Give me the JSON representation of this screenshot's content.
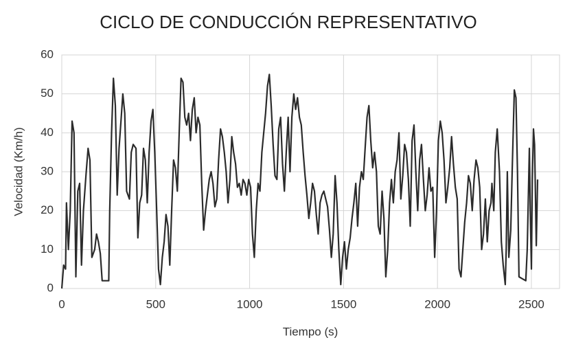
{
  "chart_data": {
    "type": "line",
    "title": "CICLO DE CONDUCCIÓN REPRESENTATIVO",
    "x_label": "Tiempo (s)",
    "y_label": "Velocidad (Km/h)",
    "xlim": [
      0,
      2650
    ],
    "ylim": [
      0,
      60
    ],
    "xticks": [
      0,
      500,
      1000,
      1500,
      2000,
      2500
    ],
    "yticks": [
      0,
      10,
      20,
      30,
      40,
      50,
      60
    ],
    "grid": true,
    "color": "#2b2b2b",
    "series": [
      {
        "name": "Velocidad",
        "color": "#2b2b2b",
        "x": [
          0,
          10,
          20,
          25,
          35,
          45,
          55,
          65,
          75,
          85,
          95,
          105,
          115,
          130,
          140,
          150,
          160,
          175,
          185,
          195,
          205,
          215,
          250,
          255,
          265,
          275,
          285,
          295,
          305,
          315,
          325,
          335,
          345,
          360,
          370,
          380,
          395,
          405,
          415,
          425,
          435,
          445,
          455,
          465,
          475,
          485,
          495,
          505,
          515,
          525,
          535,
          545,
          555,
          565,
          575,
          585,
          595,
          605,
          615,
          625,
          635,
          645,
          655,
          665,
          675,
          685,
          695,
          705,
          715,
          725,
          735,
          745,
          755,
          765,
          775,
          785,
          795,
          805,
          815,
          825,
          835,
          845,
          855,
          865,
          875,
          885,
          895,
          905,
          915,
          925,
          935,
          945,
          955,
          965,
          975,
          985,
          995,
          1005,
          1015,
          1025,
          1035,
          1045,
          1055,
          1065,
          1075,
          1085,
          1095,
          1105,
          1115,
          1125,
          1135,
          1145,
          1155,
          1165,
          1175,
          1185,
          1195,
          1205,
          1215,
          1225,
          1235,
          1245,
          1255,
          1265,
          1275,
          1285,
          1295,
          1305,
          1315,
          1325,
          1335,
          1345,
          1355,
          1365,
          1375,
          1385,
          1395,
          1405,
          1415,
          1425,
          1435,
          1445,
          1455,
          1465,
          1475,
          1485,
          1495,
          1505,
          1515,
          1525,
          1535,
          1545,
          1555,
          1565,
          1575,
          1585,
          1595,
          1605,
          1615,
          1625,
          1635,
          1645,
          1655,
          1665,
          1675,
          1685,
          1695,
          1705,
          1715,
          1725,
          1735,
          1745,
          1755,
          1765,
          1775,
          1785,
          1795,
          1805,
          1815,
          1825,
          1835,
          1845,
          1855,
          1865,
          1875,
          1885,
          1895,
          1905,
          1915,
          1925,
          1935,
          1945,
          1955,
          1965,
          1975,
          1985,
          1995,
          2005,
          2015,
          2025,
          2035,
          2045,
          2055,
          2065,
          2075,
          2085,
          2095,
          2105,
          2115,
          2125,
          2135,
          2145,
          2155,
          2165,
          2175,
          2185,
          2195,
          2205,
          2215,
          2225,
          2235,
          2245,
          2255,
          2265,
          2275,
          2285,
          2290,
          2300,
          2308,
          2318,
          2330,
          2340,
          2350,
          2361,
          2366,
          2372,
          2380,
          2390,
          2398,
          2409,
          2418,
          2426,
          2434,
          2470,
          2478,
          2489,
          2494,
          2500,
          2505,
          2511,
          2517,
          2526,
          2533
        ],
        "values": [
          0,
          6,
          5,
          22,
          10,
          20,
          43,
          40,
          3,
          25,
          27,
          6,
          20,
          30,
          36,
          33,
          8,
          10,
          14,
          12,
          9,
          2,
          2,
          20,
          40,
          54,
          47,
          24,
          36,
          43,
          50,
          45,
          25,
          23,
          35,
          37,
          36,
          13,
          22,
          24,
          36,
          33,
          22,
          35,
          43,
          46,
          35,
          20,
          5,
          1,
          8,
          12,
          19,
          16,
          6,
          20,
          33,
          31,
          25,
          40,
          54,
          53,
          44,
          42,
          45,
          38,
          46,
          49,
          40,
          44,
          42,
          27,
          15,
          20,
          24,
          28,
          30,
          27,
          21,
          23,
          33,
          41,
          39,
          35,
          30,
          22,
          28,
          39,
          35,
          32,
          26,
          27,
          24,
          28,
          27,
          24,
          28,
          26,
          14,
          8,
          20,
          27,
          25,
          35,
          40,
          45,
          52,
          55,
          47,
          37,
          29,
          28,
          41,
          44,
          32,
          25,
          35,
          44,
          30,
          44,
          50,
          46,
          49,
          44,
          42,
          35,
          29,
          24,
          18,
          22,
          27,
          25,
          19,
          14,
          22,
          24,
          25,
          23,
          21,
          15,
          8,
          14,
          29,
          22,
          10,
          1,
          8,
          12,
          5,
          10,
          13,
          18,
          22,
          27,
          16,
          26,
          30,
          28,
          36,
          44,
          47,
          38,
          31,
          35,
          30,
          16,
          14,
          25,
          18,
          3,
          10,
          22,
          28,
          22,
          30,
          33,
          40,
          23,
          29,
          37,
          35,
          28,
          16,
          38,
          42,
          30,
          20,
          33,
          37,
          28,
          20,
          24,
          31,
          25,
          26,
          8,
          20,
          38,
          43,
          40,
          33,
          22,
          26,
          31,
          39,
          32,
          26,
          23,
          5,
          3,
          10,
          17,
          22,
          29,
          27,
          20,
          28,
          33,
          31,
          26,
          10,
          14,
          23,
          12,
          20,
          22,
          27,
          20,
          35,
          41,
          30,
          12,
          6,
          1,
          10,
          30,
          8,
          15,
          31,
          51,
          49,
          30,
          3,
          2,
          10,
          36,
          20,
          5,
          28,
          41,
          37,
          11,
          28
        ]
      }
    ]
  }
}
